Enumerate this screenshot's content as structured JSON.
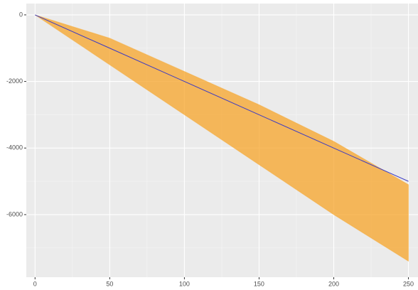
{
  "chart_data": {
    "type": "line",
    "x": [
      0,
      50,
      100,
      150,
      200,
      250
    ],
    "series": [
      {
        "color": "#3b3bc4",
        "values": [
          0,
          -1000,
          -2000,
          -3000,
          -4000,
          -5000
        ]
      }
    ],
    "band": {
      "color": "#f7a428",
      "upper": [
        0,
        -700,
        -1700,
        -2700,
        -3800,
        -5100
      ],
      "lower": [
        0,
        -1500,
        -3000,
        -4500,
        -6000,
        -7400
      ]
    },
    "xlim": [
      -5.85,
      256.4
    ],
    "ylim": [
      -7880,
      340
    ],
    "xticks": [
      0,
      50,
      100,
      150,
      200,
      250
    ],
    "yticks": [
      0,
      -2000,
      -4000,
      -6000
    ],
    "minor_xticks": [
      25,
      75,
      125,
      175,
      225
    ],
    "minor_yticks": [
      -1000,
      -3000,
      -5000,
      -7000
    ],
    "grid": true
  }
}
